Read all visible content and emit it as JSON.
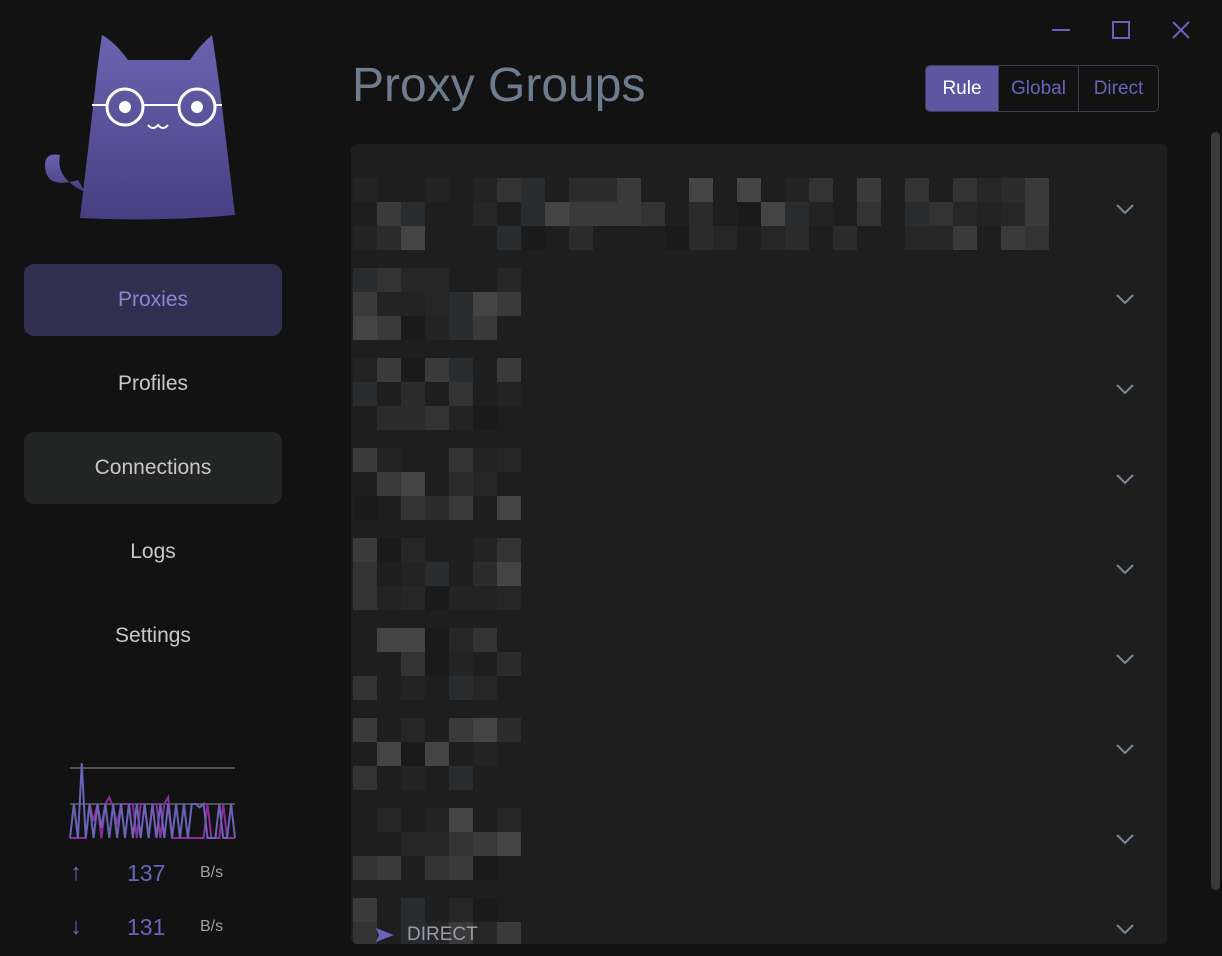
{
  "window": {
    "controls": [
      "minimize-icon",
      "maximize-icon",
      "close-icon"
    ]
  },
  "sidebar": {
    "items": [
      {
        "label": "Proxies",
        "state": "active"
      },
      {
        "label": "Profiles",
        "state": "normal"
      },
      {
        "label": "Connections",
        "state": "hover"
      },
      {
        "label": "Logs",
        "state": "normal"
      },
      {
        "label": "Settings",
        "state": "normal"
      }
    ],
    "traffic": {
      "upload": {
        "value": "137",
        "unit": "B/s"
      },
      "download": {
        "value": "131",
        "unit": "B/s"
      },
      "upload_history": [
        0,
        1,
        0,
        2.2,
        0,
        1,
        0,
        1,
        0.3,
        1,
        0,
        1,
        0,
        1,
        0,
        1,
        0,
        1,
        0,
        1,
        0,
        1,
        0,
        1,
        0,
        1,
        0,
        1,
        0,
        1,
        0,
        1,
        1,
        0.9,
        1,
        0,
        0,
        0,
        1,
        0,
        0,
        1,
        0
      ],
      "download_history": [
        0,
        0,
        0,
        0,
        0,
        1,
        0.5,
        1,
        0,
        1,
        1.2,
        0.9,
        0.4,
        1,
        1,
        1,
        1,
        0,
        1,
        1,
        0,
        1,
        1,
        0,
        1,
        1.2,
        0,
        0,
        0,
        0,
        0,
        0,
        0,
        0,
        0,
        1,
        0,
        0,
        0,
        1,
        0,
        0,
        0
      ]
    }
  },
  "header": {
    "title": "Proxy Groups",
    "modes": [
      "Rule",
      "Global",
      "Direct"
    ],
    "selected_mode": "Rule"
  },
  "groups": {
    "count_visible": 9,
    "last_selected": "DIRECT"
  },
  "colors": {
    "accent": "#5b57a0",
    "active_bg": "#312f4f",
    "panel": "#1e1e1e"
  }
}
